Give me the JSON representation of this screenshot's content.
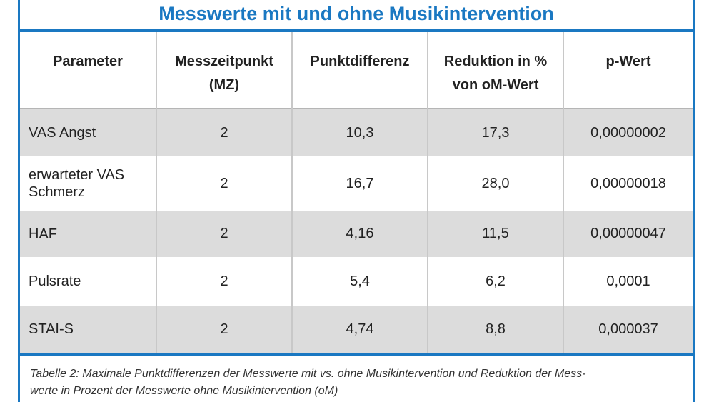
{
  "title": "Messwerte mit und ohne Musikintervention",
  "table": {
    "headers": [
      [
        "Parameter"
      ],
      [
        "Messzeitpunkt",
        "(MZ)"
      ],
      [
        "Punktdifferenz"
      ],
      [
        "Reduktion in %",
        "von oM-Wert"
      ],
      [
        "p-Wert"
      ]
    ],
    "rows": [
      {
        "parameter": [
          "VAS Angst"
        ],
        "mz": "2",
        "punktdifferenz": "10,3",
        "reduktion": "17,3",
        "p_wert": "0,00000002"
      },
      {
        "parameter": [
          "erwarteter VAS",
          "Schmerz"
        ],
        "mz": "2",
        "punktdifferenz": "16,7",
        "reduktion": "28,0",
        "p_wert": "0,00000018"
      },
      {
        "parameter": [
          "HAF"
        ],
        "mz": "2",
        "punktdifferenz": "4,16",
        "reduktion": "11,5",
        "p_wert": "0,00000047"
      },
      {
        "parameter": [
          "Pulsrate"
        ],
        "mz": "2",
        "punktdifferenz": "5,4",
        "reduktion": "6,2",
        "p_wert": "0,0001"
      },
      {
        "parameter": [
          "STAI-S"
        ],
        "mz": "2",
        "punktdifferenz": "4,74",
        "reduktion": "8,8",
        "p_wert": "0,000037"
      }
    ]
  },
  "caption": [
    "Tabelle 2: Maximale Punktdifferenzen der Messwerte mit vs. ohne Musikintervention und Reduktion der Mess-",
    "werte in Prozent der Messwerte ohne Musikintervention (oM)"
  ],
  "colors": {
    "accent": "#1a78c2",
    "row_shade": "#dcdcdc",
    "row_plain": "#ffffff"
  }
}
